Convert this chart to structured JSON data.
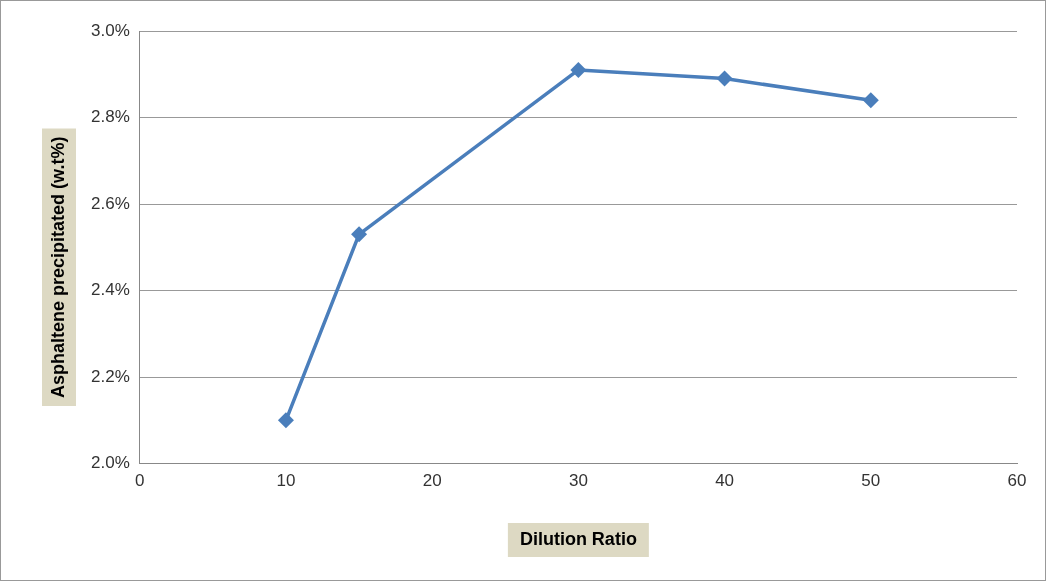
{
  "chart_data": {
    "type": "line",
    "xlabel": "Dilution Ratio",
    "ylabel": "Asphaltene precipitated (w.t%)",
    "x": [
      10,
      15,
      30,
      40,
      50
    ],
    "series": [
      {
        "color": "#4a7ebb",
        "values": [
          2.1,
          2.53,
          2.91,
          2.89,
          2.84
        ]
      }
    ],
    "xlim": [
      0,
      60
    ],
    "xticks": [
      0,
      10,
      20,
      30,
      40,
      50,
      60
    ],
    "ylim": [
      2.0,
      3.0
    ],
    "yticks": [
      {
        "value": 2.0,
        "label": "2.0%"
      },
      {
        "value": 2.2,
        "label": "2.2%"
      },
      {
        "value": 2.4,
        "label": "2.4%"
      },
      {
        "value": 2.6,
        "label": "2.6%"
      },
      {
        "value": 2.8,
        "label": "2.8%"
      },
      {
        "value": 3.0,
        "label": "3.0%"
      }
    ],
    "grid": "y",
    "legend": false,
    "marker": "diamond",
    "line_style": "solid"
  }
}
